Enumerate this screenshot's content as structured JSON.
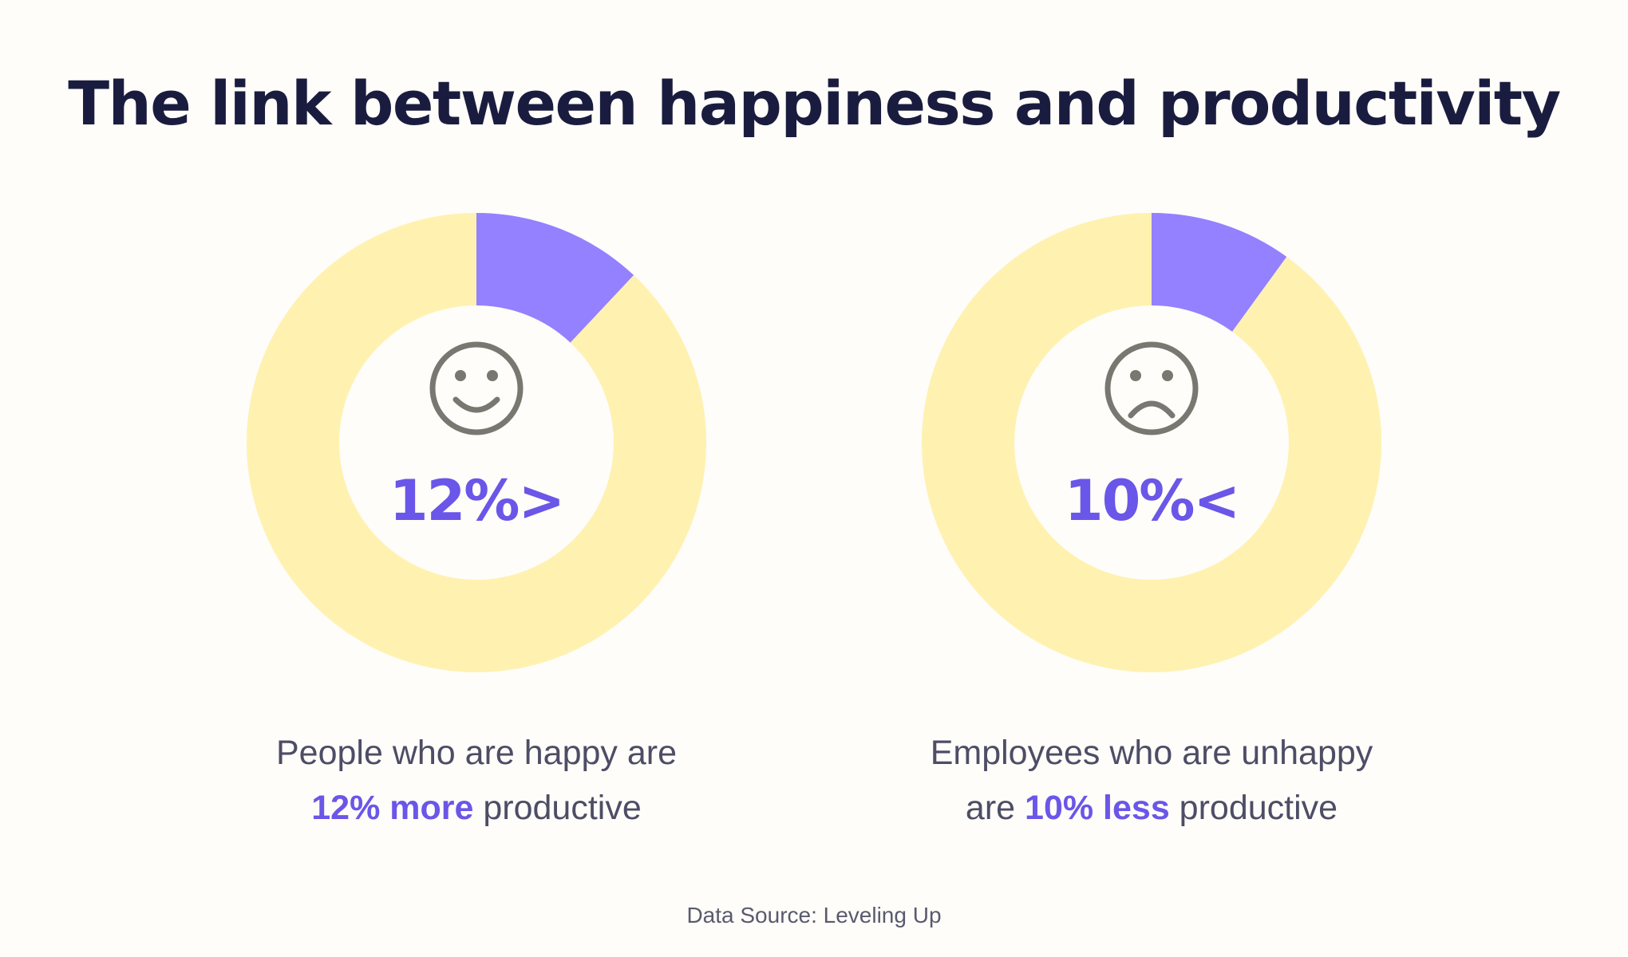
{
  "title": "The link between happiness and productivity",
  "colors": {
    "accent": "#9381ff",
    "accent_text": "#6a56e8",
    "ring": "#fff1b0",
    "face": "#7a7670",
    "title": "#1a1c3f",
    "body_text": "#4d4d66"
  },
  "chart_data": [
    {
      "type": "pie",
      "style": "donut",
      "values": [
        12,
        88
      ],
      "colors": [
        "#9381ff",
        "#fff1b0"
      ],
      "center_icon": "smiley-face-icon",
      "center_label": "12%>",
      "caption": {
        "line1": "People who are happy are",
        "highlight": "12% more",
        "rest": " productive"
      }
    },
    {
      "type": "pie",
      "style": "donut",
      "values": [
        10,
        90
      ],
      "colors": [
        "#9381ff",
        "#fff1b0"
      ],
      "center_icon": "sad-face-icon",
      "center_label": "10%<",
      "caption": {
        "line1": "Employees who are unhappy",
        "prefix": "are ",
        "highlight": "10% less",
        "rest": " productive"
      }
    }
  ],
  "source": "Data Source: Leveling Up"
}
